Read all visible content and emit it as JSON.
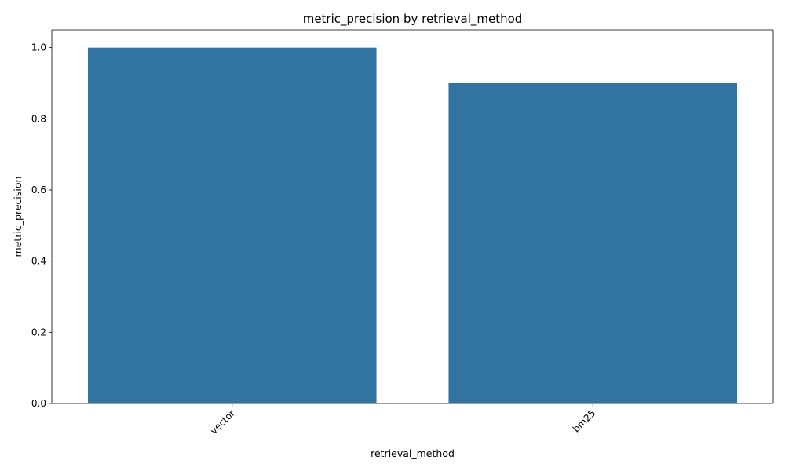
{
  "chart_data": {
    "type": "bar",
    "title": "metric_precision by retrieval_method",
    "xlabel": "retrieval_method",
    "ylabel": "metric_precision",
    "categories": [
      "vector",
      "bm25"
    ],
    "values": [
      1.0,
      0.9
    ],
    "ylim": [
      0,
      1.05
    ],
    "yticks": [
      0.0,
      0.2,
      0.4,
      0.6,
      0.8,
      1.0
    ],
    "ytick_labels": [
      "0.0",
      "0.2",
      "0.4",
      "0.6",
      "0.8",
      "1.0"
    ],
    "xtick_rotation": 45,
    "bar_color": "#3274a1",
    "grid": false,
    "legend": "none"
  }
}
